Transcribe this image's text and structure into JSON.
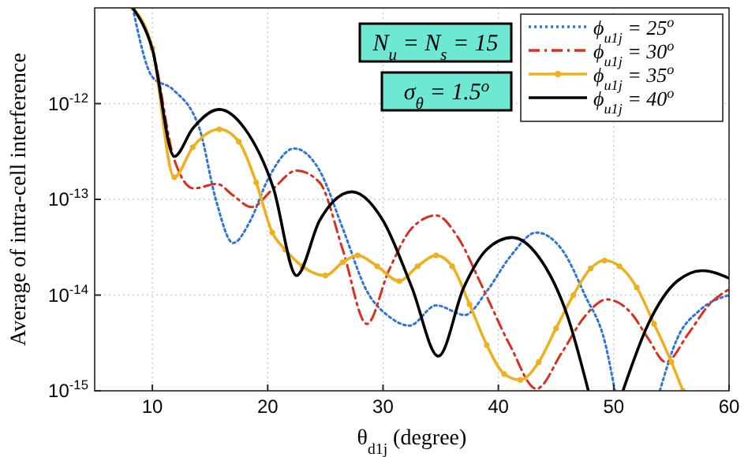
{
  "chart_data": {
    "type": "line",
    "xlabel": "θ$_{d1j}$ (degree)",
    "ylabel": "Average of intra-cell interference",
    "log": "y",
    "grid": true,
    "legend": "top right",
    "marker": "none",
    "xlim": [
      5,
      60
    ],
    "xticks": [
      10,
      20,
      30,
      40,
      50,
      60
    ],
    "ylim": [
      1e-15,
      1e-11
    ],
    "yticks": [
      {
        "value": 1e-15,
        "label": "10$^{-15}$"
      },
      {
        "value": 1e-14,
        "label": "10$^{-14}$"
      },
      {
        "value": 1e-13,
        "label": "10$^{-13}$"
      },
      {
        "value": 1e-12,
        "label": "10$^{-12}$"
      }
    ],
    "annotations": [
      "N$_{u}$ = N$_{s}$ = 15",
      "σ$_{θ}$ = 1.5$^{o}$"
    ],
    "series": [
      {
        "name": "ϕ$_{u1j}$ = 25$^{o}$",
        "color": "#2f74d8",
        "line_style": "dotted",
        "x": [
          8.3,
          10,
          11.8,
          14.1,
          15.5,
          17,
          18.5,
          20,
          22.3,
          24.5,
          26.5,
          28.6,
          30.5,
          32.3,
          34.6,
          37.1,
          39,
          41,
          43.3,
          45.5,
          47.5,
          49.3,
          50.1,
          52,
          54,
          55.5,
          57.5,
          60
        ],
        "values": [
          1e-11,
          1.9e-12,
          1.4e-12,
          5.4e-13,
          1e-13,
          3.5e-14,
          6e-14,
          1.6e-13,
          3.4e-13,
          2e-13,
          5e-14,
          1.1e-14,
          6e-15,
          4.8e-15,
          7.8e-15,
          6.2e-15,
          1.1e-14,
          2.5e-14,
          4.5e-14,
          3e-14,
          1e-14,
          3e-15,
          1e-15,
          null,
          1e-15,
          3.5e-15,
          7e-15,
          1e-14
        ]
      },
      {
        "name": "ϕ$_{u1j}$ = 30$^{o}$",
        "color": "#d9301e",
        "line_style": "dashed",
        "x": [
          8.3,
          10,
          11.9,
          13.6,
          15.6,
          17,
          18.6,
          20.5,
          22.5,
          24.5,
          26.5,
          28.6,
          30.5,
          32.5,
          34.6,
          36.5,
          38.5,
          41,
          43.3,
          45.5,
          47.5,
          49.4,
          51.5,
          53,
          54.5,
          56.5,
          58.3,
          60
        ],
        "values": [
          1e-11,
          3.8e-12,
          2.6e-13,
          1.3e-13,
          1.45e-13,
          1.1e-13,
          8.3e-14,
          1.3e-13,
          2e-13,
          1.5e-13,
          3e-14,
          5e-15,
          1.8e-14,
          5e-14,
          6.8e-14,
          4e-14,
          1.3e-14,
          3e-15,
          1.05e-15,
          2.5e-15,
          6e-15,
          9e-15,
          6.5e-15,
          3.5e-15,
          2e-15,
          4e-15,
          8e-15,
          1.15e-14
        ]
      },
      {
        "name": "ϕ$_{u1j}$ = 35$^{o}$",
        "color": "#edb120",
        "line_style": "solid",
        "marker": "circle",
        "x": [
          8.3,
          10,
          11.9,
          13.5,
          15.8,
          17.5,
          19,
          20.4,
          21.5,
          23,
          25,
          26.5,
          27.8,
          29.5,
          31.4,
          33,
          34.6,
          36,
          37.5,
          39,
          40.5,
          41.9,
          43.5,
          45,
          46.5,
          48,
          49.2,
          50.5,
          52,
          53.5,
          55,
          56
        ],
        "values": [
          1e-11,
          3.8e-12,
          1.7e-13,
          3.5e-13,
          5.4e-13,
          4e-13,
          1.5e-13,
          4.5e-14,
          3e-14,
          2e-14,
          1.6e-14,
          2.2e-14,
          2.6e-14,
          2e-14,
          1.4e-14,
          2e-14,
          2.6e-14,
          2e-14,
          8e-15,
          3e-15,
          1.5e-15,
          1.3e-15,
          2e-15,
          4.5e-15,
          1e-14,
          1.9e-14,
          2.3e-14,
          2e-14,
          1.2e-14,
          5e-15,
          2e-15,
          1e-15
        ]
      },
      {
        "name": "ϕ$_{u1j}$ = 40$^{o}$",
        "color": "#000000",
        "line_style": "solid",
        "x": [
          8.3,
          10,
          11.9,
          13.5,
          15.8,
          18,
          20.5,
          22.5,
          24.5,
          27.3,
          30,
          32.5,
          34.8,
          37,
          39,
          41.2,
          43.5,
          46,
          47.8,
          49.3,
          50.8,
          53,
          55.5,
          57.7,
          60
        ],
        "values": [
          1e-11,
          3.7e-12,
          2.8e-13,
          5.5e-13,
          8.7e-13,
          5.5e-13,
          1.3e-13,
          1.6e-14,
          6e-14,
          1.2e-13,
          6e-14,
          1.2e-14,
          2.3e-15,
          1.2e-14,
          3e-14,
          4e-14,
          2.5e-14,
          6e-15,
          1e-15,
          null,
          1e-15,
          5e-15,
          1.4e-14,
          1.8e-14,
          1.5e-14
        ]
      }
    ]
  }
}
